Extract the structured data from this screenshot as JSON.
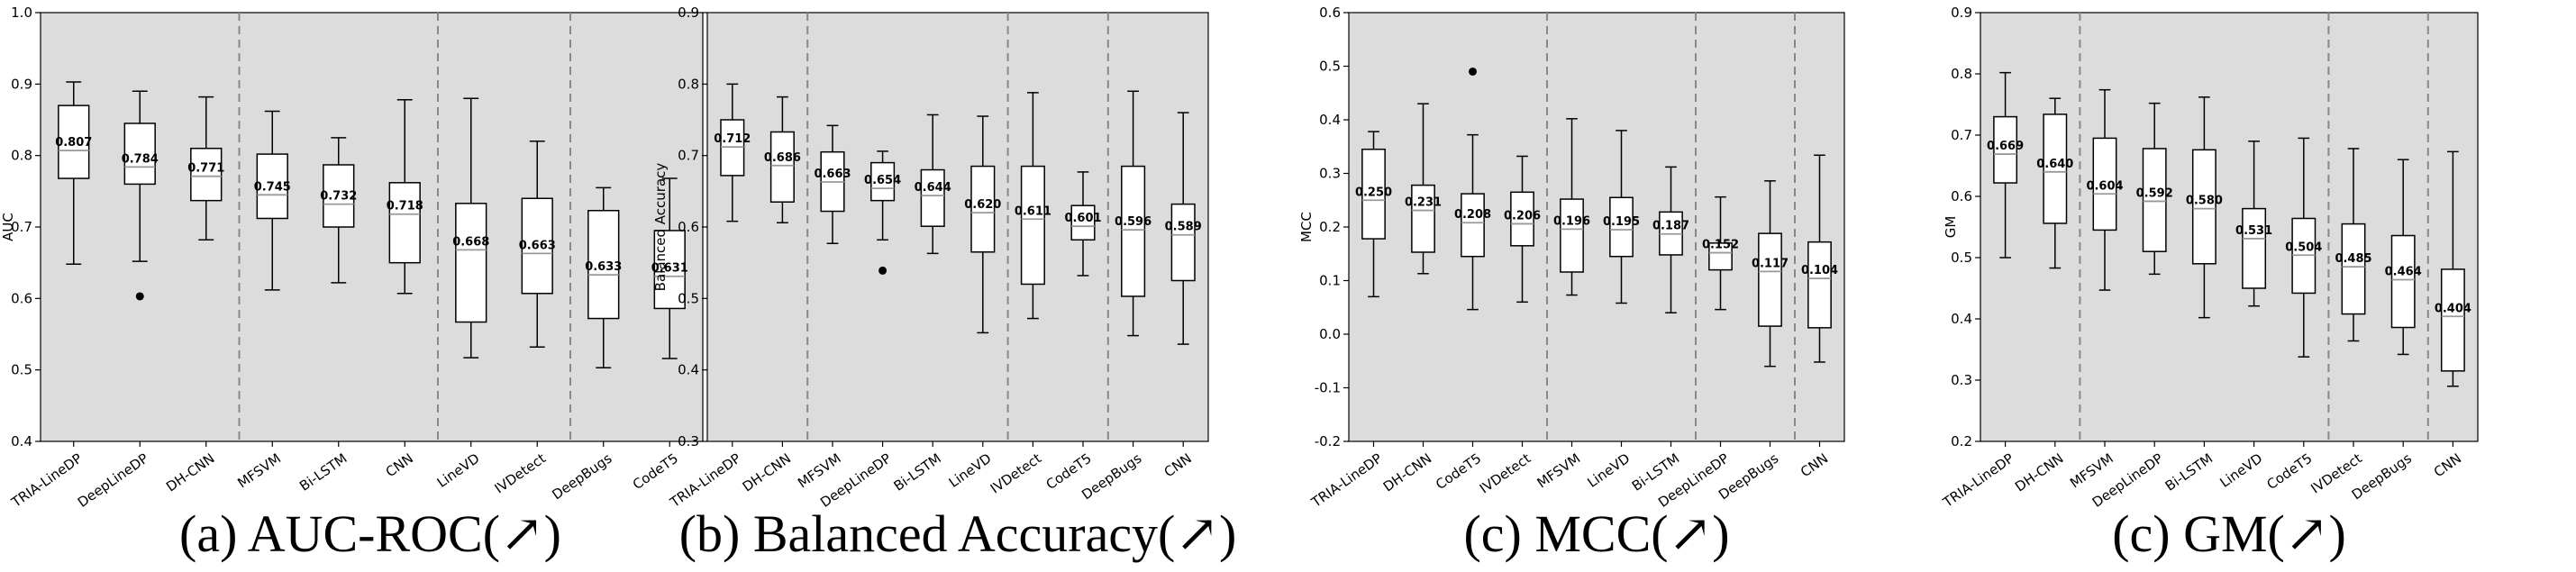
{
  "chart_data": [
    {
      "type": "box",
      "caption": "(a) AUC-ROC(↗)",
      "ylabel": "AUC",
      "ylim": [
        0.4,
        1.0
      ],
      "yticks": [
        "0.4",
        "0.5",
        "0.6",
        "0.7",
        "0.8",
        "0.9",
        "1.0"
      ],
      "background": "#dcdcdc",
      "separators_after": [
        2,
        5,
        7
      ],
      "categories": [
        "TRIA-LineDP",
        "DeepLineDP",
        "DH-CNN",
        "MFSVM",
        "Bi-LSTM",
        "CNN",
        "LineVD",
        "IVDetect",
        "DeepBugs",
        "CodeT5"
      ],
      "boxes": [
        {
          "whislo": 0.648,
          "q1": 0.768,
          "med": 0.807,
          "q3": 0.87,
          "whishi": 0.903,
          "label": "0.807",
          "fliers": []
        },
        {
          "whislo": 0.652,
          "q1": 0.76,
          "med": 0.784,
          "q3": 0.845,
          "whishi": 0.89,
          "label": "0.784",
          "fliers": [
            0.603
          ]
        },
        {
          "whislo": 0.682,
          "q1": 0.737,
          "med": 0.771,
          "q3": 0.81,
          "whishi": 0.882,
          "label": "0.771",
          "fliers": []
        },
        {
          "whislo": 0.612,
          "q1": 0.712,
          "med": 0.745,
          "q3": 0.802,
          "whishi": 0.862,
          "label": "0.745",
          "fliers": []
        },
        {
          "whislo": 0.622,
          "q1": 0.7,
          "med": 0.732,
          "q3": 0.787,
          "whishi": 0.825,
          "label": "0.732",
          "fliers": []
        },
        {
          "whislo": 0.607,
          "q1": 0.65,
          "med": 0.718,
          "q3": 0.762,
          "whishi": 0.878,
          "label": "0.718",
          "fliers": []
        },
        {
          "whislo": 0.517,
          "q1": 0.567,
          "med": 0.668,
          "q3": 0.733,
          "whishi": 0.88,
          "label": "0.668",
          "fliers": []
        },
        {
          "whislo": 0.532,
          "q1": 0.607,
          "med": 0.663,
          "q3": 0.74,
          "whishi": 0.82,
          "label": "0.663",
          "fliers": []
        },
        {
          "whislo": 0.503,
          "q1": 0.572,
          "med": 0.633,
          "q3": 0.723,
          "whishi": 0.755,
          "label": "0.633",
          "fliers": []
        },
        {
          "whislo": 0.516,
          "q1": 0.586,
          "med": 0.631,
          "q3": 0.695,
          "whishi": 0.768,
          "label": "0.631",
          "fliers": []
        }
      ]
    },
    {
      "type": "box",
      "caption": "(b) Balanced Accuracy(↗)",
      "ylabel": "Balanced Accuracy",
      "ylim": [
        0.3,
        0.9
      ],
      "yticks": [
        "0.3",
        "0.4",
        "0.5",
        "0.6",
        "0.7",
        "0.8",
        "0.9"
      ],
      "background": "#dcdcdc",
      "separators_after": [
        1,
        5,
        7
      ],
      "categories": [
        "TRIA-LineDP",
        "DH-CNN",
        "MFSVM",
        "DeepLineDP",
        "Bi-LSTM",
        "LineVD",
        "IVDetect",
        "CodeT5",
        "DeepBugs",
        "CNN"
      ],
      "boxes": [
        {
          "whislo": 0.608,
          "q1": 0.672,
          "med": 0.712,
          "q3": 0.75,
          "whishi": 0.8,
          "label": "0.712",
          "fliers": []
        },
        {
          "whislo": 0.606,
          "q1": 0.635,
          "med": 0.686,
          "q3": 0.733,
          "whishi": 0.782,
          "label": "0.686",
          "fliers": []
        },
        {
          "whislo": 0.577,
          "q1": 0.622,
          "med": 0.663,
          "q3": 0.705,
          "whishi": 0.742,
          "label": "0.663",
          "fliers": []
        },
        {
          "whislo": 0.582,
          "q1": 0.637,
          "med": 0.654,
          "q3": 0.69,
          "whishi": 0.706,
          "label": "0.654",
          "fliers": [
            0.539
          ]
        },
        {
          "whislo": 0.563,
          "q1": 0.601,
          "med": 0.644,
          "q3": 0.68,
          "whishi": 0.757,
          "label": "0.644",
          "fliers": []
        },
        {
          "whislo": 0.452,
          "q1": 0.565,
          "med": 0.62,
          "q3": 0.685,
          "whishi": 0.755,
          "label": "0.620",
          "fliers": []
        },
        {
          "whislo": 0.472,
          "q1": 0.52,
          "med": 0.611,
          "q3": 0.685,
          "whishi": 0.788,
          "label": "0.611",
          "fliers": []
        },
        {
          "whislo": 0.532,
          "q1": 0.582,
          "med": 0.601,
          "q3": 0.63,
          "whishi": 0.677,
          "label": "0.601",
          "fliers": []
        },
        {
          "whislo": 0.448,
          "q1": 0.503,
          "med": 0.596,
          "q3": 0.685,
          "whishi": 0.79,
          "label": "0.596",
          "fliers": []
        },
        {
          "whislo": 0.436,
          "q1": 0.525,
          "med": 0.589,
          "q3": 0.632,
          "whishi": 0.76,
          "label": "0.589",
          "fliers": []
        }
      ]
    },
    {
      "type": "box",
      "caption": "(c) MCC(↗)",
      "ylabel": "MCC",
      "ylim": [
        -0.2,
        0.6
      ],
      "yticks": [
        "-0.2",
        "-0.1",
        "0.0",
        "0.1",
        "0.2",
        "0.3",
        "0.4",
        "0.5",
        "0.6"
      ],
      "background": "#dcdcdc",
      "separators_after": [
        3,
        6,
        8
      ],
      "categories": [
        "TRIA-LineDP",
        "DH-CNN",
        "CodeT5",
        "IVDetect",
        "MFSVM",
        "LineVD",
        "Bi-LSTM",
        "DeepLineDP",
        "DeepBugs",
        "CNN"
      ],
      "boxes": [
        {
          "whislo": 0.07,
          "q1": 0.178,
          "med": 0.25,
          "q3": 0.345,
          "whishi": 0.378,
          "label": "0.250",
          "fliers": []
        },
        {
          "whislo": 0.113,
          "q1": 0.153,
          "med": 0.231,
          "q3": 0.278,
          "whishi": 0.43,
          "label": "0.231",
          "fliers": []
        },
        {
          "whislo": 0.046,
          "q1": 0.145,
          "med": 0.208,
          "q3": 0.262,
          "whishi": 0.372,
          "label": "0.208",
          "fliers": [
            0.49
          ]
        },
        {
          "whislo": 0.06,
          "q1": 0.165,
          "med": 0.206,
          "q3": 0.265,
          "whishi": 0.332,
          "label": "0.206",
          "fliers": []
        },
        {
          "whislo": 0.073,
          "q1": 0.116,
          "med": 0.196,
          "q3": 0.252,
          "whishi": 0.402,
          "label": "0.196",
          "fliers": []
        },
        {
          "whislo": 0.058,
          "q1": 0.145,
          "med": 0.195,
          "q3": 0.255,
          "whishi": 0.38,
          "label": "0.195",
          "fliers": []
        },
        {
          "whislo": 0.04,
          "q1": 0.148,
          "med": 0.187,
          "q3": 0.228,
          "whishi": 0.312,
          "label": "0.187",
          "fliers": []
        },
        {
          "whislo": 0.046,
          "q1": 0.12,
          "med": 0.152,
          "q3": 0.17,
          "whishi": 0.256,
          "label": "0.152",
          "fliers": []
        },
        {
          "whislo": -0.06,
          "q1": 0.015,
          "med": 0.117,
          "q3": 0.188,
          "whishi": 0.286,
          "label": "0.117",
          "fliers": []
        },
        {
          "whislo": -0.052,
          "q1": 0.012,
          "med": 0.104,
          "q3": 0.172,
          "whishi": 0.334,
          "label": "0.104",
          "fliers": []
        }
      ]
    },
    {
      "type": "box",
      "caption": "(c) GM(↗)",
      "ylabel": "GM",
      "ylim": [
        0.2,
        0.9
      ],
      "yticks": [
        "0.2",
        "0.3",
        "0.4",
        "0.5",
        "0.6",
        "0.7",
        "0.8",
        "0.9"
      ],
      "background": "#dcdcdc",
      "separators_after": [
        1,
        6,
        8
      ],
      "categories": [
        "TRIA-LineDP",
        "DH-CNN",
        "MFSVM",
        "DeepLineDP",
        "Bi-LSTM",
        "LineVD",
        "CodeT5",
        "IVDetect",
        "DeepBugs",
        "CNN"
      ],
      "boxes": [
        {
          "whislo": 0.5,
          "q1": 0.622,
          "med": 0.669,
          "q3": 0.73,
          "whishi": 0.802,
          "label": "0.669",
          "fliers": []
        },
        {
          "whislo": 0.483,
          "q1": 0.556,
          "med": 0.64,
          "q3": 0.734,
          "whishi": 0.76,
          "label": "0.640",
          "fliers": []
        },
        {
          "whislo": 0.447,
          "q1": 0.545,
          "med": 0.604,
          "q3": 0.695,
          "whishi": 0.774,
          "label": "0.604",
          "fliers": []
        },
        {
          "whislo": 0.473,
          "q1": 0.51,
          "med": 0.592,
          "q3": 0.678,
          "whishi": 0.752,
          "label": "0.592",
          "fliers": []
        },
        {
          "whislo": 0.402,
          "q1": 0.49,
          "med": 0.58,
          "q3": 0.676,
          "whishi": 0.762,
          "label": "0.580",
          "fliers": []
        },
        {
          "whislo": 0.421,
          "q1": 0.45,
          "med": 0.531,
          "q3": 0.58,
          "whishi": 0.69,
          "label": "0.531",
          "fliers": []
        },
        {
          "whislo": 0.338,
          "q1": 0.442,
          "med": 0.504,
          "q3": 0.564,
          "whishi": 0.695,
          "label": "0.504",
          "fliers": []
        },
        {
          "whislo": 0.364,
          "q1": 0.408,
          "med": 0.485,
          "q3": 0.555,
          "whishi": 0.678,
          "label": "0.485",
          "fliers": []
        },
        {
          "whislo": 0.342,
          "q1": 0.386,
          "med": 0.464,
          "q3": 0.536,
          "whishi": 0.66,
          "label": "0.464",
          "fliers": []
        },
        {
          "whislo": 0.29,
          "q1": 0.315,
          "med": 0.404,
          "q3": 0.481,
          "whishi": 0.673,
          "label": "0.404",
          "fliers": []
        }
      ]
    }
  ]
}
